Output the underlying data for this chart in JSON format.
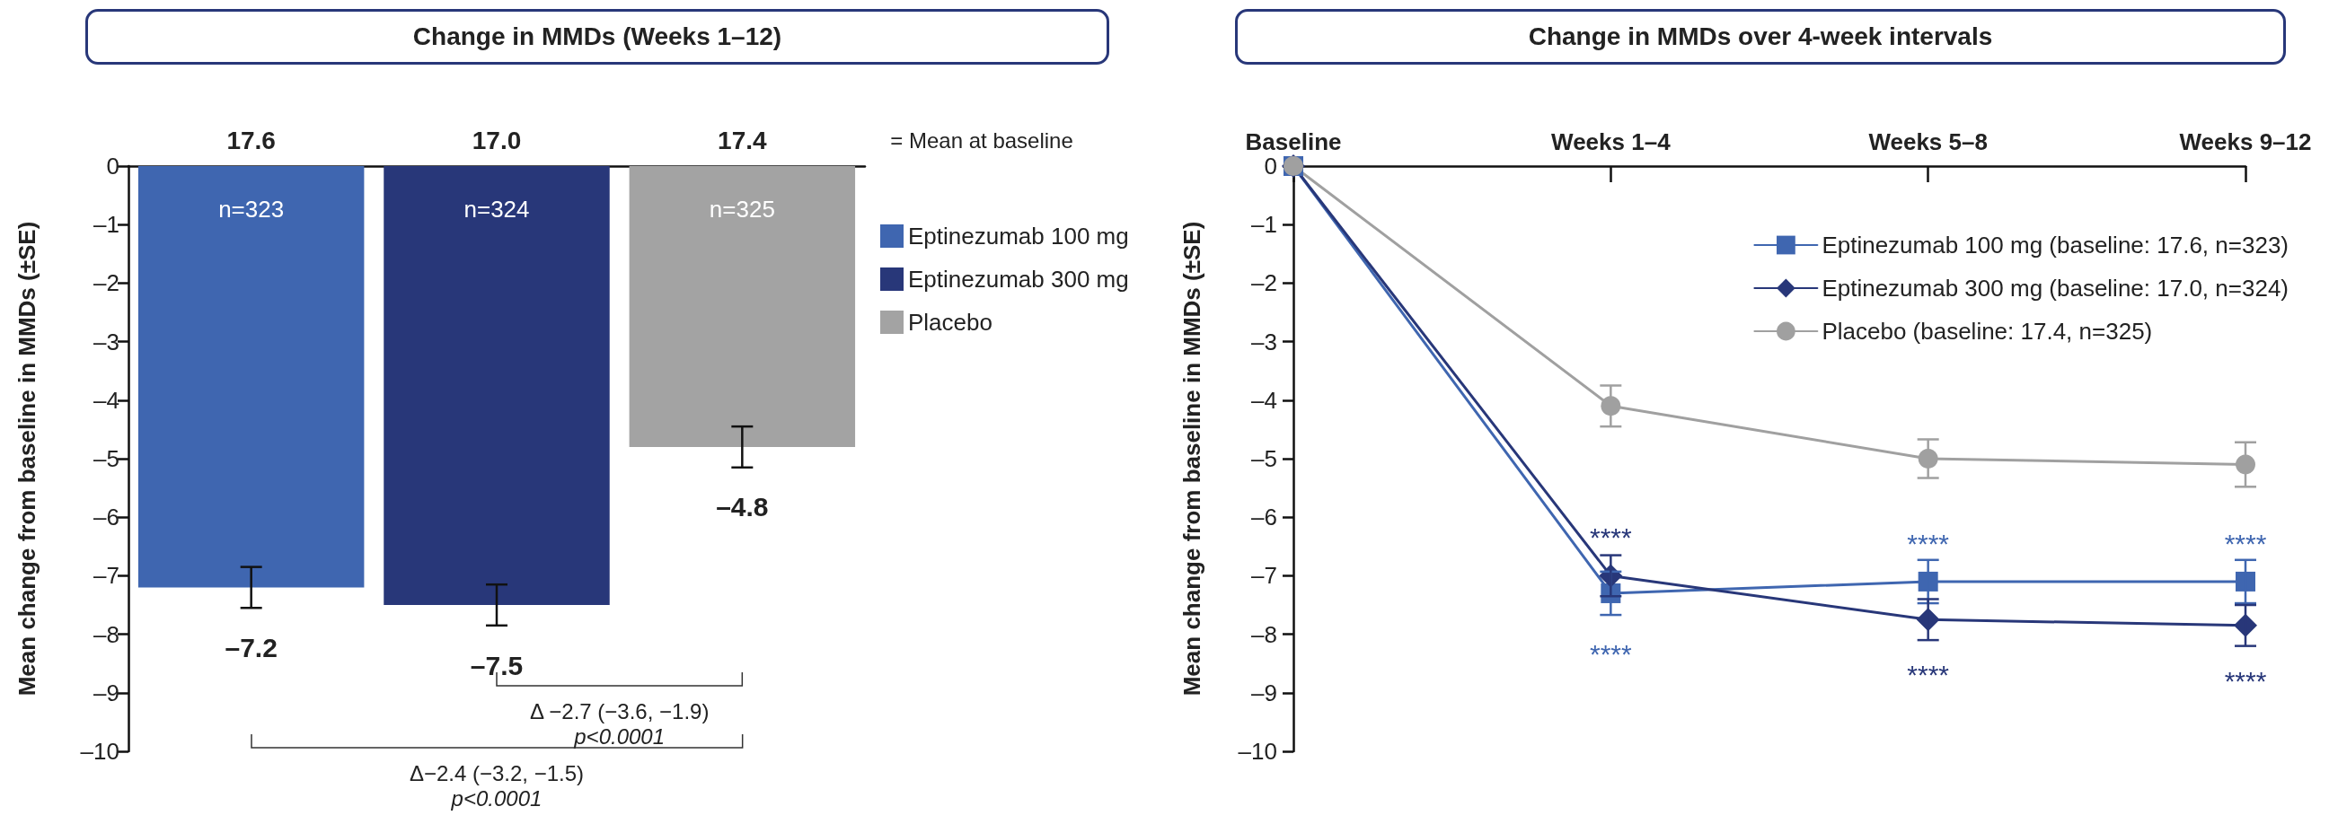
{
  "chart_data": [
    {
      "type": "bar",
      "title": "Change in MMDs (Weeks 1–12)",
      "ylabel": "Mean change from baseline in MMDs (±SE)",
      "categories": [
        null,
        null,
        null
      ],
      "series": [
        {
          "name": "Eptinezumab 100 mg",
          "color": "#3f66b0",
          "values": [
            -7.2,
            null,
            null
          ],
          "errors": [
            0.35,
            null,
            null
          ],
          "value_labels": [
            "–7.2",
            null,
            null
          ]
        },
        {
          "name": "Eptinezumab 300 mg",
          "color": "#283779",
          "values": [
            null,
            -7.5,
            null
          ],
          "errors": [
            null,
            0.35,
            null
          ],
          "value_labels": [
            null,
            "–7.5",
            null
          ]
        },
        {
          "name": "Placebo",
          "color": "#a3a3a3",
          "values": [
            null,
            null,
            -4.8
          ],
          "errors": [
            null,
            null,
            0.35
          ],
          "value_labels": [
            null,
            null,
            "–4.8"
          ]
        }
      ],
      "ylim": [
        -10,
        0
      ],
      "yticks": [
        0,
        {
          "value": -1,
          "label": "–1"
        },
        {
          "value": -2,
          "label": "–2"
        },
        {
          "value": -3,
          "label": "–3"
        },
        {
          "value": -4,
          "label": "–4"
        },
        {
          "value": -5,
          "label": "–5"
        },
        {
          "value": -6,
          "label": "–6"
        },
        {
          "value": -7,
          "label": "–7"
        },
        {
          "value": -8,
          "label": "–8"
        },
        {
          "value": -9,
          "label": "–9"
        },
        {
          "value": -10,
          "label": "–10"
        }
      ],
      "annotations": [
        "17.6",
        "17.0",
        "17.4",
        "= Mean at baseline",
        "n=323",
        "n=324",
        "n=325",
        "Δ −2.7 (−3.6, −1.9)",
        "p<0.0001",
        "Δ−2.4 (−3.2, −1.5)",
        "p<0.0001"
      ],
      "grid": false,
      "legend": "right"
    },
    {
      "type": "line",
      "title": "Change in MMDs over 4-week intervals",
      "ylabel": "Mean change from baseline in MMDs (±SE)",
      "categories": [
        "Baseline",
        "Weeks 1–4",
        "Weeks 5–8",
        "Weeks 9–12"
      ],
      "series": [
        {
          "name": "Eptinezumab 100 mg (baseline: 17.6, n=323)",
          "color": "#3f66b0",
          "marker": "square",
          "values": [
            0,
            -7.3,
            -7.1,
            -7.1
          ],
          "errors": [
            null,
            0.37,
            0.37,
            0.37
          ]
        },
        {
          "name": "Eptinezumab 300 mg (baseline: 17.0, n=324)",
          "color": "#283779",
          "marker": "diamond",
          "values": [
            0,
            -7.0,
            -7.75,
            -7.85
          ],
          "errors": [
            null,
            0.35,
            0.35,
            0.35
          ]
        },
        {
          "name": "Placebo (baseline: 17.4, n=325)",
          "color": "#a0a0a0",
          "marker": "circle",
          "values": [
            0,
            -4.1,
            -5.0,
            -5.1
          ],
          "errors": [
            null,
            0.35,
            0.33,
            0.38
          ]
        }
      ],
      "ylim": [
        -10,
        0
      ],
      "yticks": [
        0,
        {
          "value": -1,
          "label": "–1"
        },
        {
          "value": -2,
          "label": "–2"
        },
        {
          "value": -3,
          "label": "–3"
        },
        {
          "value": -4,
          "label": "–4"
        },
        {
          "value": -5,
          "label": "–5"
        },
        {
          "value": -6,
          "label": "–6"
        },
        {
          "value": -7,
          "label": "–7"
        },
        {
          "value": -8,
          "label": "–8"
        },
        {
          "value": -9,
          "label": "–9"
        },
        {
          "value": -10,
          "label": "–10"
        }
      ],
      "annotations": [
        "****",
        "****",
        "****",
        "****",
        "****",
        "****"
      ],
      "grid": false,
      "legend": "top right"
    }
  ]
}
